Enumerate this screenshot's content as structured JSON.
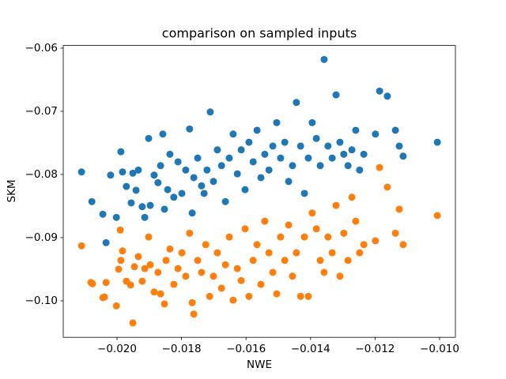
{
  "chart_data": {
    "type": "scatter",
    "title": "comparison on sampled inputs",
    "x_label": "NWE",
    "y_label": "SKM",
    "xlim": [
      -0.021667,
      -0.00951
    ],
    "ylim": [
      -0.10578,
      -0.05958
    ],
    "xticks": [
      {
        "value": -0.02,
        "label": "−0.020"
      },
      {
        "value": -0.018,
        "label": "−0.018"
      },
      {
        "value": -0.016,
        "label": "−0.016"
      },
      {
        "value": -0.014,
        "label": "−0.014"
      },
      {
        "value": -0.012,
        "label": "−0.012"
      },
      {
        "value": -0.01,
        "label": "−0.010"
      }
    ],
    "yticks": [
      {
        "value": -0.1,
        "label": "−0.10"
      },
      {
        "value": -0.09,
        "label": "−0.09"
      },
      {
        "value": -0.08,
        "label": "−0.08"
      },
      {
        "value": -0.07,
        "label": "−0.07"
      },
      {
        "value": -0.06,
        "label": "−0.06"
      }
    ],
    "grid": false,
    "series": [
      {
        "color": "#1f77b4",
        "x": [
          -0.0211,
          -0.02078,
          -0.02044,
          -0.02034,
          -0.0202,
          -0.02002,
          -0.01988,
          -0.01983,
          -0.01971,
          -0.01956,
          -0.01951,
          -0.01941,
          -0.01934,
          -0.01922,
          -0.01914,
          -0.01902,
          -0.01897,
          -0.01885,
          -0.01873,
          -0.01865,
          -0.01858,
          -0.01853,
          -0.01843,
          -0.01836,
          -0.01824,
          -0.01811,
          -0.01799,
          -0.01787,
          -0.01775,
          -0.01767,
          -0.01762,
          -0.0175,
          -0.01738,
          -0.0173,
          -0.01721,
          -0.01711,
          -0.01701,
          -0.01689,
          -0.01676,
          -0.01664,
          -0.01652,
          -0.0164,
          -0.01627,
          -0.01615,
          -0.01603,
          -0.01591,
          -0.01578,
          -0.01566,
          -0.01554,
          -0.01542,
          -0.01529,
          -0.01517,
          -0.01505,
          -0.01493,
          -0.0148,
          -0.01468,
          -0.01456,
          -0.01444,
          -0.01431,
          -0.01419,
          -0.01407,
          -0.01395,
          -0.01382,
          -0.0137,
          -0.01358,
          -0.01346,
          -0.01333,
          -0.01321,
          -0.01309,
          -0.01297,
          -0.01284,
          -0.01272,
          -0.0126,
          -0.01248,
          -0.01235,
          -0.01199,
          -0.01186,
          -0.01162,
          -0.01137,
          -0.01125,
          -0.01113,
          -0.01007
        ],
        "values": [
          -0.0796,
          -0.0843,
          -0.0863,
          -0.0908,
          -0.0801,
          -0.0868,
          -0.0764,
          -0.0796,
          -0.0819,
          -0.0845,
          -0.0798,
          -0.0825,
          -0.0793,
          -0.0851,
          -0.0868,
          -0.0743,
          -0.0849,
          -0.0801,
          -0.0813,
          -0.0786,
          -0.0736,
          -0.0855,
          -0.0824,
          -0.0768,
          -0.0836,
          -0.078,
          -0.083,
          -0.0793,
          -0.0728,
          -0.0861,
          -0.0805,
          -0.0774,
          -0.0818,
          -0.083,
          -0.0793,
          -0.0701,
          -0.0811,
          -0.0761,
          -0.0786,
          -0.0843,
          -0.0774,
          -0.0736,
          -0.0799,
          -0.0761,
          -0.0824,
          -0.0749,
          -0.078,
          -0.073,
          -0.0805,
          -0.0768,
          -0.0793,
          -0.0755,
          -0.0718,
          -0.0774,
          -0.0749,
          -0.0811,
          -0.0786,
          -0.0686,
          -0.0755,
          -0.083,
          -0.0774,
          -0.0718,
          -0.0743,
          -0.0786,
          -0.0618,
          -0.0755,
          -0.0774,
          -0.0674,
          -0.0749,
          -0.0768,
          -0.0786,
          -0.0761,
          -0.073,
          -0.0793,
          -0.0768,
          -0.0736,
          -0.0668,
          -0.0676,
          -0.073,
          -0.0755,
          -0.0771,
          -0.0749
        ]
      },
      {
        "color": "#ff7f0e",
        "x": [
          -0.0211,
          -0.02081,
          -0.02076,
          -0.02044,
          -0.02039,
          -0.02034,
          -0.02002,
          -0.01995,
          -0.0199,
          -0.01988,
          -0.01983,
          -0.01971,
          -0.01958,
          -0.01951,
          -0.01946,
          -0.01934,
          -0.01922,
          -0.01914,
          -0.01902,
          -0.01897,
          -0.01885,
          -0.01873,
          -0.01865,
          -0.01853,
          -0.01848,
          -0.01836,
          -0.01824,
          -0.01811,
          -0.01799,
          -0.01787,
          -0.01775,
          -0.01767,
          -0.01762,
          -0.0175,
          -0.01738,
          -0.01725,
          -0.01713,
          -0.01701,
          -0.01689,
          -0.01676,
          -0.01664,
          -0.01652,
          -0.0164,
          -0.01627,
          -0.01615,
          -0.01603,
          -0.01591,
          -0.01578,
          -0.01566,
          -0.01554,
          -0.01542,
          -0.01529,
          -0.01517,
          -0.01505,
          -0.01493,
          -0.0148,
          -0.01468,
          -0.01456,
          -0.01444,
          -0.01431,
          -0.01419,
          -0.01407,
          -0.01395,
          -0.01382,
          -0.0137,
          -0.01358,
          -0.01346,
          -0.01333,
          -0.01321,
          -0.01309,
          -0.01297,
          -0.01284,
          -0.01272,
          -0.0126,
          -0.01248,
          -0.01235,
          -0.01199,
          -0.01186,
          -0.01162,
          -0.01137,
          -0.01125,
          -0.01113,
          -0.01007
        ],
        "values": [
          -0.0913,
          -0.0971,
          -0.0973,
          -0.0995,
          -0.0994,
          -0.0971,
          -0.1008,
          -0.095,
          -0.0888,
          -0.0936,
          -0.0921,
          -0.0969,
          -0.0975,
          -0.1035,
          -0.0946,
          -0.093,
          -0.0969,
          -0.0949,
          -0.0899,
          -0.0943,
          -0.0986,
          -0.0955,
          -0.0989,
          -0.1005,
          -0.0936,
          -0.0918,
          -0.0974,
          -0.0949,
          -0.0924,
          -0.0961,
          -0.0893,
          -0.1003,
          -0.1021,
          -0.0936,
          -0.0955,
          -0.0911,
          -0.0993,
          -0.0961,
          -0.0924,
          -0.098,
          -0.0943,
          -0.0899,
          -0.0999,
          -0.0949,
          -0.0968,
          -0.0886,
          -0.0993,
          -0.0936,
          -0.0911,
          -0.0974,
          -0.0874,
          -0.0924,
          -0.0955,
          -0.0989,
          -0.0899,
          -0.0936,
          -0.088,
          -0.0961,
          -0.0924,
          -0.0993,
          -0.0899,
          -0.0993,
          -0.0861,
          -0.0886,
          -0.0936,
          -0.0955,
          -0.0899,
          -0.0924,
          -0.0849,
          -0.0961,
          -0.0893,
          -0.0936,
          -0.0836,
          -0.0874,
          -0.0924,
          -0.0911,
          -0.0905,
          -0.0789,
          -0.082,
          -0.0893,
          -0.0855,
          -0.0911,
          -0.0865
        ]
      }
    ]
  }
}
